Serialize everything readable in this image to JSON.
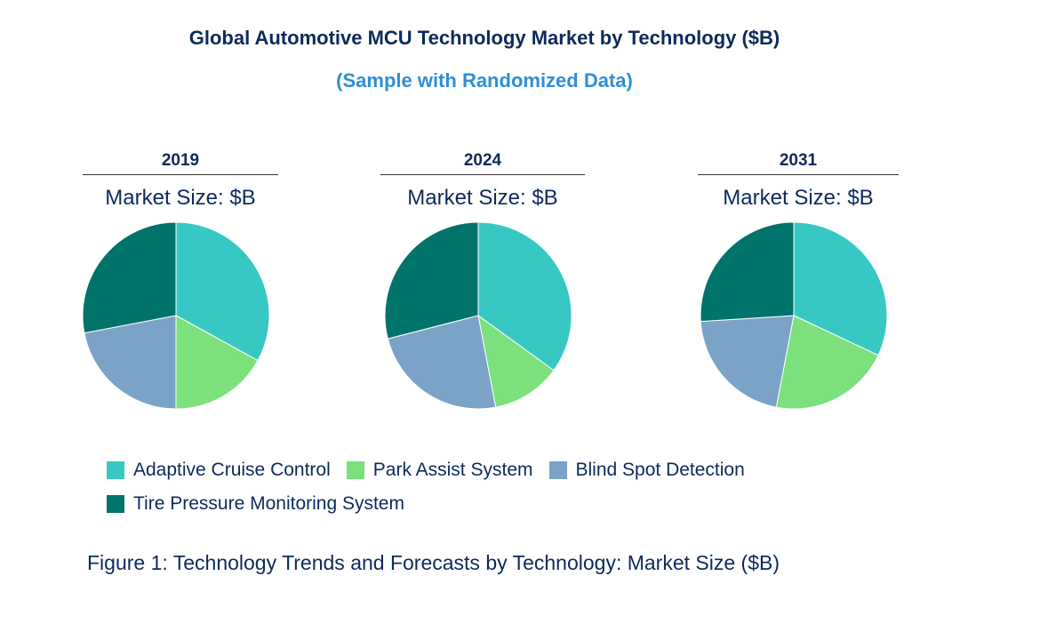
{
  "chart_data": {
    "type": "pie",
    "title": "Global Automotive MCU Technology Market by Technology ($B)",
    "subtitle": "(Sample with Randomized Data)",
    "caption": "Figure 1: Technology Trends and Forecasts by Technology: Market Size ($B)",
    "legend_placement": "bottom",
    "categories": [
      "Adaptive Cruise Control",
      "Park Assist System",
      "Blind Spot Detection",
      "Tire Pressure Monitoring System"
    ],
    "colors": [
      "#38c8c4",
      "#7ce07c",
      "#7ba3c8",
      "#00736a"
    ],
    "pies": [
      {
        "year": "2019",
        "label": "Market Size: $B",
        "values": [
          33,
          17,
          22,
          28
        ]
      },
      {
        "year": "2024",
        "label": "Market Size: $B",
        "values": [
          35,
          12,
          24,
          29
        ]
      },
      {
        "year": "2031",
        "label": "Market Size: $B",
        "values": [
          32,
          21,
          21,
          26
        ]
      }
    ]
  }
}
